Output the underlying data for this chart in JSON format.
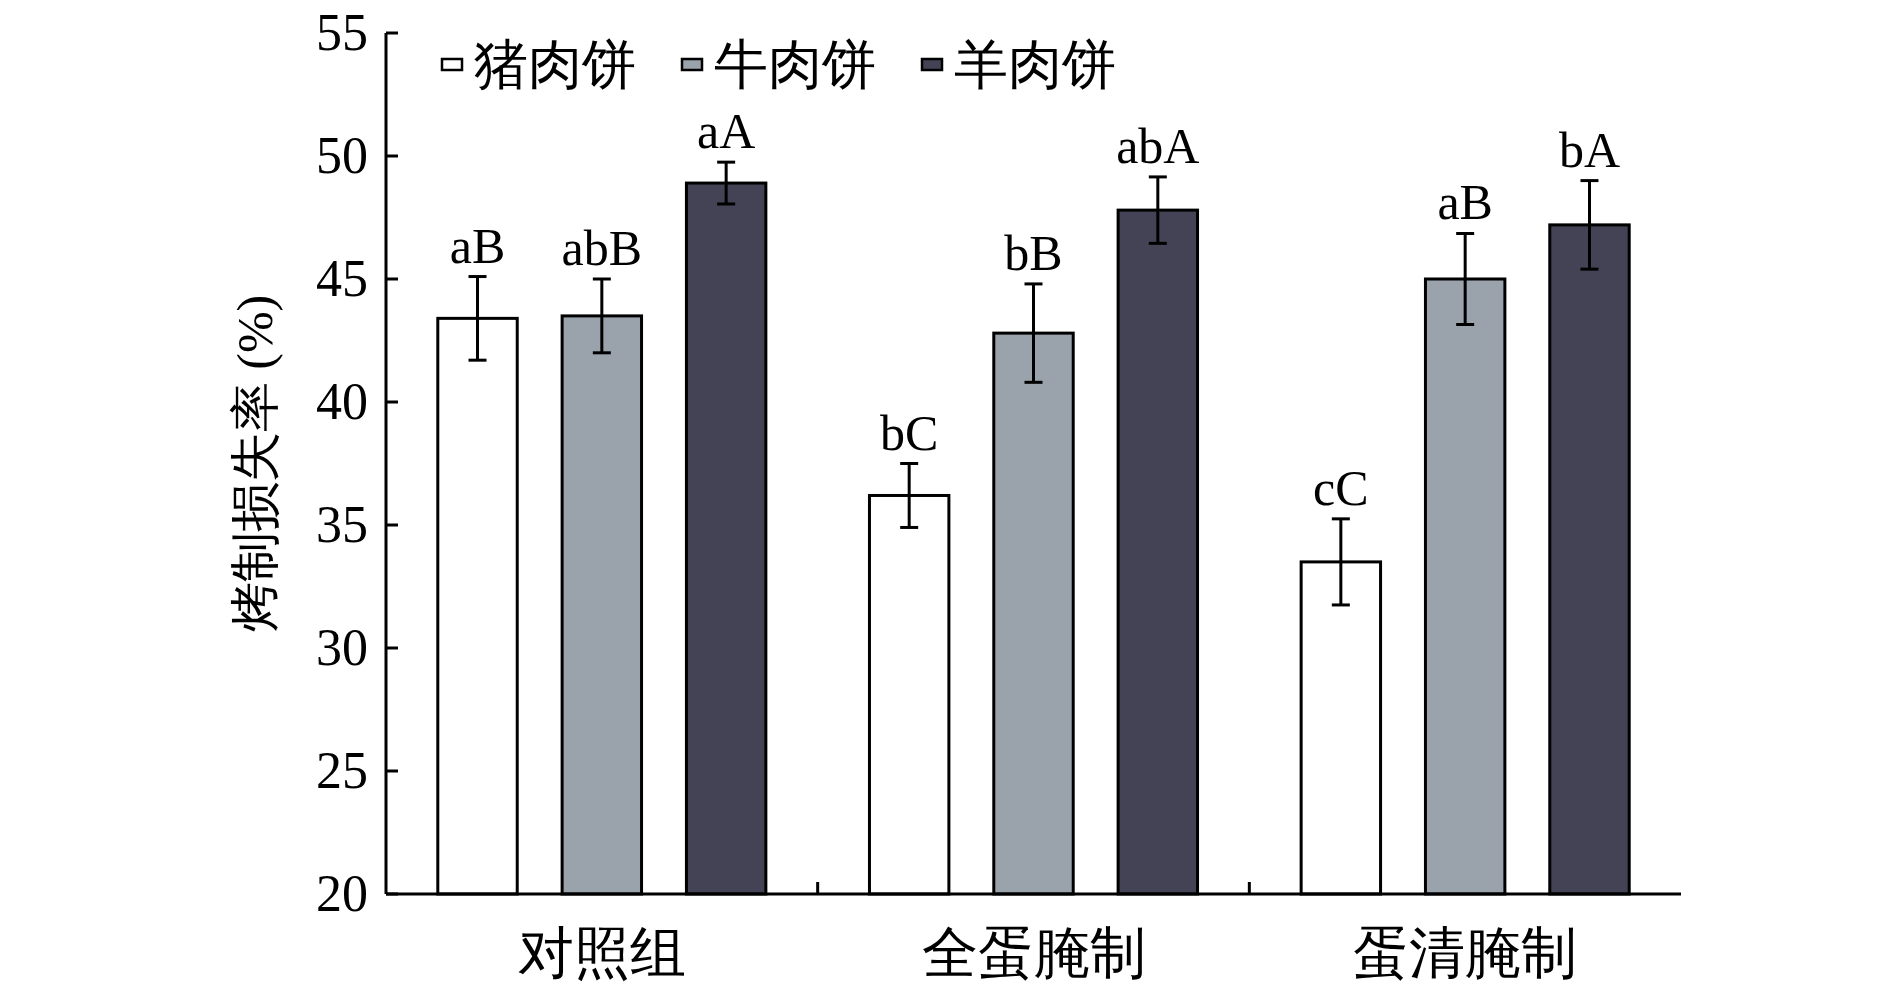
{
  "chart_data": {
    "type": "bar",
    "ylabel": "烤制损失率 (%)",
    "categories": [
      "对照组",
      "全蛋腌制",
      "蛋清腌制"
    ],
    "series": [
      {
        "name": "猪肉饼",
        "color": "#ffffff",
        "values": [
          43.4,
          36.2,
          33.5
        ],
        "errors": [
          1.7,
          1.3,
          1.75
        ],
        "value_labels": [
          "aB",
          "bC",
          "cC"
        ]
      },
      {
        "name": "牛肉饼",
        "color": "#9aa3ab",
        "values": [
          43.5,
          42.8,
          45.0
        ],
        "errors": [
          1.5,
          2.0,
          1.85
        ],
        "value_labels": [
          "abB",
          "bB",
          "aB"
        ]
      },
      {
        "name": "羊肉饼",
        "color": "#434355",
        "values": [
          48.9,
          47.8,
          47.2
        ],
        "errors": [
          0.85,
          1.35,
          1.8
        ],
        "value_labels": [
          "aA",
          "abA",
          "bA"
        ]
      }
    ],
    "ylim": [
      20,
      55
    ],
    "yticks": [
      20,
      25,
      30,
      35,
      40,
      45,
      50,
      55
    ],
    "legend": "top left"
  }
}
